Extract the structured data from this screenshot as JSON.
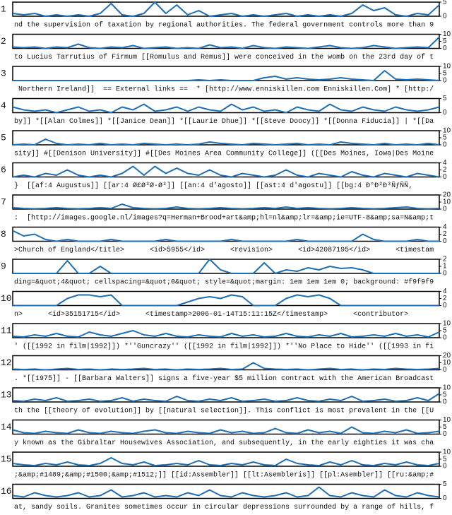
{
  "chart_data": [
    {
      "type": "line",
      "label": "1",
      "color": "#1f6fb4",
      "ylim": [
        0,
        5
      ],
      "yticks": [
        0,
        5
      ],
      "values": [
        1,
        0.5,
        1,
        0,
        0.5,
        0,
        0.5,
        0,
        1,
        4.5,
        0.5,
        0,
        1,
        5,
        1,
        4,
        0.5,
        2,
        0,
        0.5,
        1,
        0,
        0.5,
        0,
        0.5,
        1,
        0,
        0.5,
        0,
        0.5,
        0,
        1,
        4,
        2,
        3,
        0.5,
        0,
        1,
        0.5,
        4
      ],
      "text": "nd the supervision of taxation by regional authorities. The federal government controls more than 9"
    },
    {
      "type": "line",
      "label": "2",
      "color": "#1f6fb4",
      "ylim": [
        0,
        10
      ],
      "yticks": [
        0,
        5,
        10
      ],
      "values": [
        1,
        0.5,
        1,
        0,
        1,
        0.5,
        3,
        0.5,
        0,
        1,
        0.5,
        2,
        0,
        0.5,
        1,
        0,
        0.5,
        0,
        2.5,
        0.5,
        1,
        0,
        2,
        0.5,
        0,
        1,
        0.5,
        0,
        1,
        2,
        0.5,
        0,
        0.5,
        2,
        1,
        0,
        0.5,
        1,
        0.5,
        8
      ],
      "text": "to Lucius Tarrutius of Firmum [[Romulus and Remus]] were conceived in the womb on the 23rd day of t"
    },
    {
      "type": "line",
      "label": "3",
      "color": "#1f6fb4",
      "ylim": [
        0,
        10
      ],
      "yticks": [
        0,
        5,
        10
      ],
      "values": [
        0,
        0,
        0,
        0,
        0,
        0,
        0,
        0,
        0,
        0,
        0,
        0,
        0,
        0,
        0,
        0,
        0,
        0.5,
        0,
        0.5,
        0,
        0,
        0,
        2,
        3,
        1,
        2,
        1,
        0.5,
        1,
        2,
        1,
        0.5,
        0,
        7,
        1,
        0.5,
        1,
        0.5,
        0
      ],
      "text": " Northern Ireland]]  == External links ==  * [http://www.enniskillen.com Enniskillen.Com] * [http:/"
    },
    {
      "type": "line",
      "label": "4",
      "color": "#1f6fb4",
      "ylim": [
        0,
        5
      ],
      "yticks": [
        0,
        5
      ],
      "values": [
        2,
        1,
        0.5,
        1,
        0,
        1,
        2,
        0.5,
        1,
        0,
        2,
        1,
        3,
        0.5,
        1,
        2,
        0.5,
        2,
        1,
        0.5,
        3,
        1,
        2,
        0.5,
        1,
        0,
        2,
        1,
        0.5,
        3,
        1,
        0.5,
        2,
        1,
        0.5,
        2,
        1,
        0.5,
        1,
        2
      ],
      "text": "by]] *[[Alan Colmes]] *[[Janice Dean]] *[[Laurie Dhue]] *[[Steve Doocy]] *[[Donna Fiducia]] | *[[Da"
    },
    {
      "type": "line",
      "label": "5",
      "color": "#1f6fb4",
      "ylim": [
        0,
        10
      ],
      "yticks": [
        0,
        5,
        10
      ],
      "values": [
        0,
        0.5,
        0,
        4,
        1,
        0,
        0.5,
        0,
        1,
        0,
        0.5,
        0,
        1,
        0.5,
        0,
        0.5,
        0,
        0.5,
        2,
        1,
        0.5,
        0,
        1,
        0.5,
        0,
        0.5,
        1,
        0,
        0.5,
        0,
        2,
        1,
        0.5,
        0,
        1,
        0,
        0.5,
        0,
        1,
        0
      ],
      "text": "sity]] #[[Denison University]] #[[Des Moines Area Community College]] ([[Des Moines, Iowa|Des Moine"
    },
    {
      "type": "line",
      "label": "6",
      "color": "#1f6fb4",
      "ylim": [
        0,
        4
      ],
      "yticks": [
        0,
        2,
        4
      ],
      "values": [
        0,
        0.5,
        0,
        1,
        0.5,
        2,
        0.5,
        0,
        0.5,
        0,
        1,
        3,
        0.5,
        3,
        1,
        2.5,
        1,
        0.5,
        2,
        0.5,
        0,
        1,
        0.5,
        0,
        0.5,
        2,
        0.5,
        0,
        1,
        0.5,
        0,
        1.5,
        0.5,
        0,
        1,
        0.5,
        0,
        1,
        0.5,
        0
      ],
      "text": "}  [[af:4 Augustus]] [[ar:4 Ø£Ø³Ø·Ø³]] [[an:4 d'agosto]] [[ast:4 d'agostu]] [[bg:4 Ð°Ð²Ð³ÑƒÑÑ‚"
    },
    {
      "type": "line",
      "label": "7",
      "color": "#1f6fb4",
      "ylim": [
        0,
        20
      ],
      "yticks": [
        0,
        10,
        20
      ],
      "values": [
        2,
        1,
        0.5,
        1,
        2,
        1,
        0.5,
        1,
        2,
        1,
        7,
        2,
        1,
        0.5,
        1,
        3,
        1,
        0.5,
        1,
        2,
        1,
        0.5,
        1,
        2,
        1,
        3,
        1,
        2,
        1,
        0.5,
        1,
        2,
        1,
        0.5,
        1,
        2,
        3,
        1,
        0.5,
        1
      ],
      "text": ":  [http://images.google.nl/images?q=Herman+Brood+art&amp;hl=nl&amp;lr=&amp;ie=UTF-8&amp;sa=N&amp;t"
    },
    {
      "type": "line",
      "label": "8",
      "color": "#1f6fb4",
      "ylim": [
        0,
        4
      ],
      "yticks": [
        0,
        2,
        4
      ],
      "values": [
        3,
        1.5,
        2,
        0.5,
        0,
        0.5,
        0,
        0,
        0,
        0.5,
        0,
        0,
        0,
        0,
        0.5,
        0,
        0,
        0,
        0,
        0,
        0.5,
        0,
        0,
        0,
        0,
        0,
        0.5,
        0,
        0,
        0,
        0,
        0,
        2,
        0.5,
        0,
        0,
        0,
        0.5,
        0,
        0
      ],
      "text": ">Church of England</title>      <id>5955</id>      <revision>      <id>42087195</id>      <timestam"
    },
    {
      "type": "line",
      "label": "9",
      "color": "#1f6fb4",
      "ylim": [
        0,
        2
      ],
      "yticks": [
        0,
        1,
        2
      ],
      "values": [
        0,
        0,
        0,
        0,
        0,
        1.8,
        0,
        0,
        1,
        0,
        0,
        0,
        0,
        0,
        0,
        0,
        0,
        0,
        2,
        0.5,
        0,
        0,
        0,
        1.5,
        0,
        0.5,
        0.3,
        0.8,
        0.5,
        1,
        0.7,
        0.8,
        0.5,
        0,
        0,
        0,
        0,
        0,
        0,
        0
      ],
      "text": "ding=&quot;4&quot; cellspacing=&quot;0&quot; style=&quot;margin: 1em 1em 1em 0; background: #f9f9f9"
    },
    {
      "type": "line",
      "label": "10",
      "color": "#1f6fb4",
      "ylim": [
        0,
        4
      ],
      "yticks": [
        0,
        2,
        4
      ],
      "values": [
        0,
        0,
        0,
        0,
        0,
        2,
        3,
        3,
        2.5,
        3,
        0,
        0,
        0,
        0,
        0,
        0,
        1,
        2,
        2.5,
        2,
        3,
        2.5,
        0,
        0,
        0,
        2,
        3,
        2.5,
        3,
        2,
        0,
        0,
        0,
        0,
        0,
        0,
        0,
        0,
        0,
        0
      ],
      "text": "n>      <id>35151715</id>      <timestamp>2006-01-14T15:11:15Z</timestamp>      <contributor>"
    },
    {
      "type": "line",
      "label": "11",
      "color": "#1f6fb4",
      "ylim": [
        0,
        10
      ],
      "yticks": [
        0,
        5,
        10
      ],
      "values": [
        1,
        0.5,
        2,
        1,
        3,
        1,
        0.5,
        4,
        2,
        1,
        3,
        5,
        2,
        1,
        3,
        1,
        0.5,
        2,
        1,
        0.5,
        3,
        1,
        2,
        0.5,
        1,
        3,
        1,
        0.5,
        2,
        1,
        3,
        0.5,
        1,
        2,
        1,
        3,
        1,
        2,
        0.5,
        4
      ],
      "text": "' ([[1992 in film|1992]]) *''Guncrazy'' ([[1992 in film|1992]]) *''No Place to Hide'' ([[1993 in fi"
    },
    {
      "type": "line",
      "label": "12",
      "color": "#1f6fb4",
      "ylim": [
        0,
        20
      ],
      "yticks": [
        0,
        10,
        20
      ],
      "values": [
        1,
        0.5,
        1,
        0,
        1,
        2,
        0.5,
        1,
        0,
        1,
        0.5,
        1,
        2,
        0.5,
        1,
        0,
        1,
        0.5,
        1,
        2,
        0.5,
        1,
        10,
        2,
        1,
        0.5,
        1,
        0,
        1,
        2,
        0.5,
        1,
        0,
        1,
        0.5,
        2,
        1,
        0.5,
        1,
        2
      ],
      "text": ". *[[1975]] - [[Barbara Walters]] signs a five-year $5 million contract with the American Broadcast"
    },
    {
      "type": "line",
      "label": "13",
      "color": "#1f6fb4",
      "ylim": [
        0,
        10
      ],
      "yticks": [
        0,
        5,
        10
      ],
      "values": [
        1,
        0.5,
        2,
        1,
        3,
        0.5,
        1,
        2,
        0.5,
        1,
        3,
        0.5,
        2,
        1,
        0.5,
        4,
        1,
        0.5,
        2,
        1,
        3,
        0.5,
        1,
        2,
        0.5,
        1,
        3,
        1,
        0.5,
        2,
        1,
        4,
        0.5,
        1,
        2,
        0.5,
        1,
        3,
        1,
        6
      ],
      "text": "th the [[theory of evolution]] by [[natural selection]]. This conflict is most prevalent in the [[U"
    },
    {
      "type": "line",
      "label": "14",
      "color": "#1f6fb4",
      "ylim": [
        0,
        10
      ],
      "yticks": [
        0,
        5,
        10
      ],
      "values": [
        3,
        1,
        0.5,
        2,
        1,
        0.5,
        3,
        1,
        0.5,
        2,
        1,
        0.5,
        2,
        3,
        1,
        0.5,
        2,
        1,
        0.5,
        3,
        1,
        2,
        0.5,
        1,
        4,
        1,
        0.5,
        3,
        1,
        2,
        0.5,
        5,
        1,
        0.5,
        2,
        1,
        3,
        0.5,
        1,
        2
      ],
      "text": "y known as the Gibraltar Housewives Association, and subsequently, in the early eighties it was cha"
    },
    {
      "type": "line",
      "label": "15",
      "color": "#1f6fb4",
      "ylim": [
        0,
        10
      ],
      "yticks": [
        0,
        5,
        10
      ],
      "values": [
        2,
        1,
        0.5,
        2,
        1,
        3,
        1,
        0.5,
        2,
        6,
        2,
        1,
        3,
        0.5,
        1,
        2,
        1,
        4,
        1,
        0.5,
        2,
        1,
        3,
        1,
        0.5,
        5,
        2,
        1,
        0.5,
        3,
        1,
        4,
        1,
        0.5,
        2,
        1,
        3,
        1,
        0.5,
        2
      ],
      "text": ";&amp;#1489;&amp;#1500;&amp;#1512;]] [[id:Assembler]] [[lt:Asembleris]] [[pl:Asembler]] [[ru:&amp;#"
    },
    {
      "type": "line",
      "label": "16",
      "color": "#1f6fb4",
      "ylim": [
        0,
        5
      ],
      "yticks": [
        0,
        5
      ],
      "values": [
        1,
        0.5,
        2,
        1,
        0.5,
        1,
        2,
        0.5,
        1,
        3,
        0.5,
        1,
        2,
        0.5,
        1,
        0.5,
        2,
        1,
        3,
        1,
        0.5,
        2,
        1,
        0.5,
        1,
        2,
        0.5,
        1,
        4,
        1,
        0.5,
        2,
        1,
        0.5,
        3,
        1,
        0.5,
        2,
        1,
        0.5
      ],
      "text": "at, sandy soils. Granites sometimes occur in circular depressions surrounded by a range of hills, f"
    }
  ]
}
